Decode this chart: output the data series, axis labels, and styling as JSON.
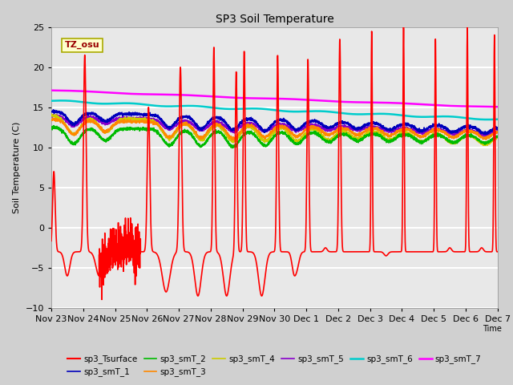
{
  "title": "SP3 Soil Temperature",
  "xlabel": "Time",
  "ylabel": "Soil Temperature (C)",
  "ylim": [
    -10,
    25
  ],
  "xlim": [
    0,
    14
  ],
  "x_tick_labels": [
    "Nov 23",
    "Nov 24",
    "Nov 25",
    "Nov 26",
    "Nov 27",
    "Nov 28",
    "Nov 29",
    "Nov 30",
    "Dec 1",
    "Dec 2",
    "Dec 3",
    "Dec 4",
    "Dec 5",
    "Dec 6",
    "Dec 7"
  ],
  "tz_label": "TZ_osu",
  "fig_bg": "#d0d0d0",
  "plot_bg": "#e8e8e8",
  "grid_bg_bands": [
    true
  ],
  "series": {
    "sp3_Tsurface": {
      "color": "#ff0000",
      "lw": 1.2,
      "zorder": 5
    },
    "sp3_smT_1": {
      "color": "#0000bb",
      "lw": 1.2,
      "zorder": 4
    },
    "sp3_smT_2": {
      "color": "#00bb00",
      "lw": 1.2,
      "zorder": 4
    },
    "sp3_smT_3": {
      "color": "#ff8800",
      "lw": 1.2,
      "zorder": 4
    },
    "sp3_smT_4": {
      "color": "#cccc00",
      "lw": 1.2,
      "zorder": 4
    },
    "sp3_smT_5": {
      "color": "#8800cc",
      "lw": 1.2,
      "zorder": 4
    },
    "sp3_smT_6": {
      "color": "#00cccc",
      "lw": 1.8,
      "zorder": 3
    },
    "sp3_smT_7": {
      "color": "#ff00ff",
      "lw": 1.8,
      "zorder": 3
    }
  },
  "legend_order": [
    "sp3_Tsurface",
    "sp3_smT_1",
    "sp3_smT_2",
    "sp3_smT_3",
    "sp3_smT_4",
    "sp3_smT_5",
    "sp3_smT_6",
    "sp3_smT_7"
  ]
}
